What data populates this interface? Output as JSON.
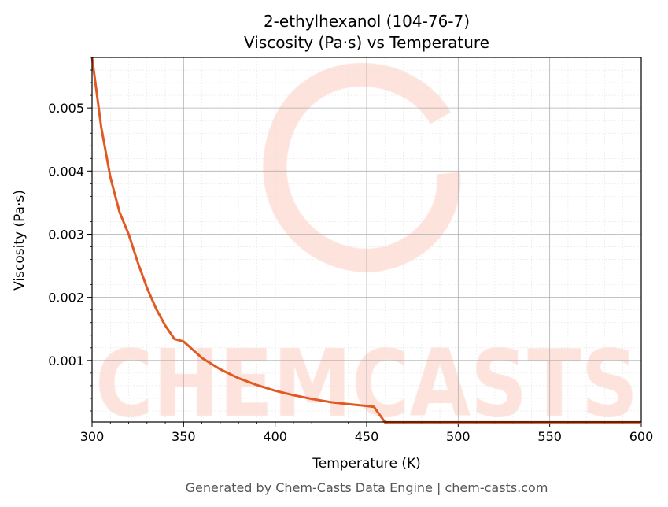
{
  "chart_data": {
    "type": "line",
    "title": "2-ethylhexanol (104-76-7)",
    "subtitle": "Viscosity (Pa·s) vs Temperature",
    "xlabel": "Temperature (K)",
    "ylabel": "Viscosity (Pa·s)",
    "xlim": [
      300,
      600
    ],
    "ylim": [
      2.5e-05,
      0.0058
    ],
    "xticks": [
      "300",
      "350",
      "400",
      "450",
      "500",
      "550",
      "600"
    ],
    "yticks": [
      "0.001",
      "0.002",
      "0.003",
      "0.004",
      "0.005"
    ],
    "grid": true,
    "series": [
      {
        "name": "Viscosity",
        "color": "#e05a24",
        "x": [
          300,
          305,
          310,
          315,
          320,
          325,
          330,
          335,
          340,
          345,
          350,
          360,
          370,
          380,
          390,
          400,
          410,
          420,
          430,
          440,
          450,
          454,
          460,
          500,
          550,
          600
        ],
        "y": [
          0.0058,
          0.0047,
          0.0039,
          0.00335,
          0.003,
          0.00255,
          0.00215,
          0.00182,
          0.00155,
          0.00134,
          0.0013,
          0.00104,
          0.00086,
          0.00072,
          0.00061,
          0.00052,
          0.00045,
          0.00039,
          0.00034,
          0.00031,
          0.00028,
          0.000265,
          2e-05,
          2e-05,
          2e-05,
          2e-05
        ]
      }
    ]
  },
  "watermark": "CHEMCASTS",
  "footer": "Generated by Chem-Casts Data Engine | chem-casts.com"
}
